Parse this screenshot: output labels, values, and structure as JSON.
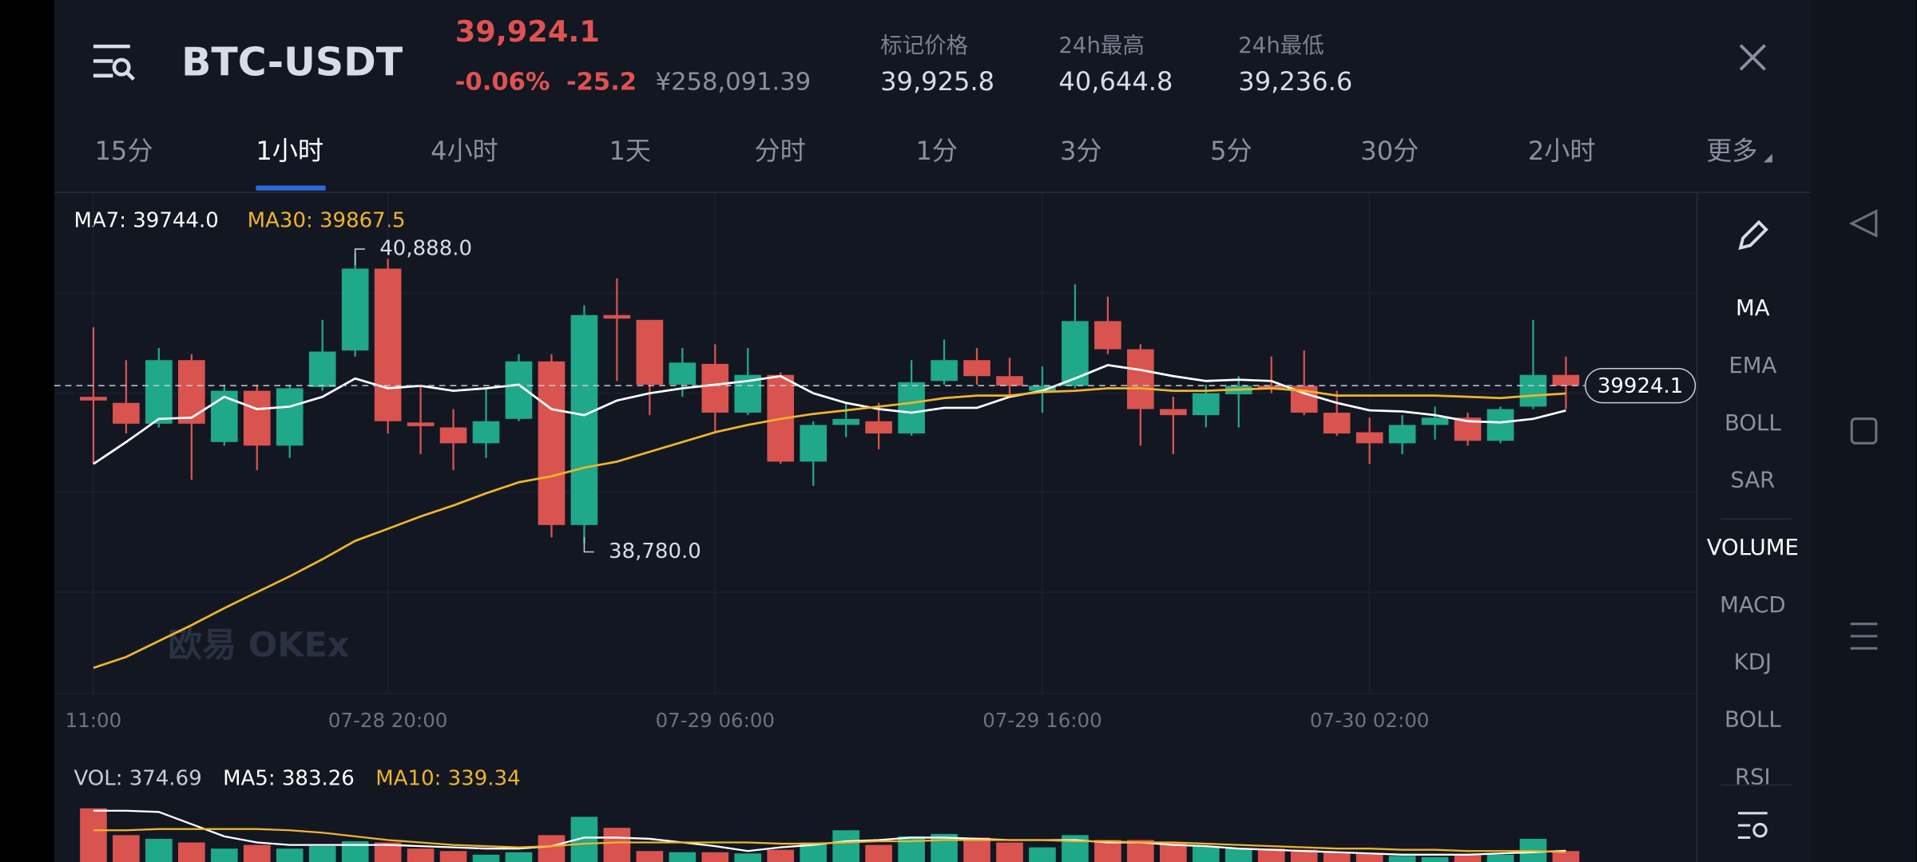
{
  "header": {
    "pair": "BTC-USDT",
    "price": "39,924.1",
    "change_pct": "-0.06%",
    "change": "-25.2",
    "cny": "¥258,091.39",
    "stats": [
      {
        "label": "标记价格",
        "value": "39,925.8"
      },
      {
        "label": "24h最高",
        "value": "40,644.8"
      },
      {
        "label": "24h最低",
        "value": "39,236.6"
      }
    ]
  },
  "tabs": [
    "15分",
    "1小时",
    "4小时",
    "1天",
    "分时",
    "1分",
    "3分",
    "5分",
    "30分",
    "2小时",
    "更多"
  ],
  "indicators": [
    "MA",
    "EMA",
    "BOLL",
    "SAR",
    "VOLUME",
    "MACD",
    "KDJ",
    "BOLL",
    "RSI"
  ],
  "watermark": "欧易 OKEx",
  "chart_data": {
    "type": "candlestick",
    "legend": [
      "MA7: 39744.0",
      "MA30: 39867.5"
    ],
    "categories": [
      "11:00",
      null,
      null,
      null,
      null,
      null,
      null,
      null,
      null,
      "07-28 20:00",
      null,
      null,
      null,
      null,
      null,
      null,
      null,
      null,
      null,
      "07-29 06:00",
      null,
      null,
      null,
      null,
      null,
      null,
      null,
      null,
      null,
      "07-29 16:00",
      null,
      null,
      null,
      null,
      null,
      null,
      null,
      null,
      null,
      "07-30 02:00",
      null,
      null,
      null,
      null,
      null,
      null
    ],
    "open": [
      39843,
      39799,
      39648,
      40109,
      39515,
      39887,
      39489,
      39914,
      40179,
      40773,
      39657,
      39621,
      39506,
      39683,
      40100,
      38913,
      40436,
      40401,
      39931,
      40082,
      39728,
      40002,
      39373,
      39639,
      39666,
      39577,
      39958,
      40109,
      39993,
      39887,
      39923,
      40392,
      40188,
      39754,
      39710,
      39861,
      39923,
      39923,
      39728,
      39586,
      39506,
      39639,
      39692,
      39524,
      39772,
      40002
    ],
    "high": [
      40348,
      40109,
      40197,
      40153,
      39931,
      39931,
      39931,
      40401,
      40888,
      40844,
      39931,
      39754,
      39905,
      40153,
      40153,
      40507,
      40702,
      40401,
      40197,
      40224,
      40197,
      40020,
      39666,
      39799,
      39799,
      40109,
      40259,
      40197,
      40126,
      40064,
      40658,
      40569,
      40224,
      39843,
      39931,
      39993,
      40135,
      40179,
      39887,
      39692,
      39710,
      39772,
      39728,
      39772,
      40401,
      40135
    ],
    "low": [
      39356,
      39577,
      39621,
      39241,
      39489,
      39311,
      39400,
      39887,
      40135,
      39577,
      39427,
      39311,
      39400,
      39666,
      38824,
      38780,
      39958,
      39710,
      39843,
      39577,
      39710,
      39356,
      39196,
      39551,
      39462,
      39560,
      39931,
      39931,
      39843,
      39728,
      39905,
      40153,
      39489,
      39427,
      39621,
      39621,
      39869,
      39710,
      39560,
      39356,
      39427,
      39533,
      39489,
      39506,
      39754,
      39754
    ],
    "close": [
      39816,
      39648,
      40109,
      39648,
      39887,
      39489,
      39905,
      40171,
      40773,
      39666,
      39630,
      39506,
      39666,
      40100,
      38913,
      40436,
      40410,
      39931,
      40091,
      39728,
      40002,
      39373,
      39639,
      39683,
      39577,
      39949,
      40109,
      39993,
      39923,
      39923,
      40392,
      40188,
      39754,
      39710,
      39869,
      39923,
      39905,
      39728,
      39577,
      39506,
      39639,
      39692,
      39524,
      39754,
      40002,
      39924.1
    ],
    "up_color": "#1fa889",
    "down_color": "#d9534f",
    "lines": [
      {
        "color": "#ffffff",
        "values": [
          39356,
          39515,
          39683,
          39692,
          39843,
          39754,
          39772,
          39843,
          39976,
          39905,
          39923,
          39887,
          39905,
          39931,
          39754,
          39710,
          39816,
          39869,
          39905,
          39931,
          39958,
          39993,
          39869,
          39799,
          39754,
          39728,
          39763,
          39763,
          39843,
          39887,
          39976,
          40073,
          40038,
          39993,
          39958,
          39967,
          39958,
          39869,
          39799,
          39745,
          39737,
          39710,
          39666,
          39657,
          39683,
          39744
        ]
      },
      {
        "color": "#f0b428",
        "values": [
          37877,
          37956,
          38072,
          38187,
          38310,
          38426,
          38541,
          38665,
          38798,
          38886,
          38975,
          39055,
          39143,
          39223,
          39267,
          39329,
          39373,
          39444,
          39515,
          39586,
          39639,
          39683,
          39719,
          39745,
          39772,
          39799,
          39834,
          39852,
          39852,
          39878,
          39887,
          39905,
          39905,
          39887,
          39887,
          39896,
          39905,
          39887,
          39852,
          39852,
          39852,
          39852,
          39843,
          39834,
          39852,
          39867.5
        ]
      }
    ],
    "ylim": [
      37691,
      41322
    ],
    "annotations": [
      {
        "value": 40888,
        "label": "40,888.0"
      },
      {
        "value": 38780,
        "label": "38,780.0"
      }
    ],
    "last_price": 39924.1,
    "volume": {
      "legend": [
        "VOL: 374.69",
        "MA5: 383.26",
        "MA10: 339.34"
      ],
      "values": [
        1833,
        917,
        792,
        667,
        458,
        583,
        458,
        542,
        708,
        667,
        458,
        375,
        250,
        333,
        917,
        1542,
        1167,
        375,
        333,
        333,
        292,
        417,
        667,
        1083,
        583,
        875,
        958,
        833,
        667,
        500,
        917,
        750,
        750,
        667,
        542,
        458,
        458,
        417,
        333,
        292,
        208,
        167,
        250,
        250,
        792,
        374.69
      ],
      "ylim": [
        0,
        2000
      ],
      "lines": [
        {
          "color": "#ffffff",
          "values": [
            1750,
            1750,
            1708,
            1292,
            875,
            667,
            583,
            583,
            583,
            583,
            542,
            500,
            458,
            458,
            542,
            833,
            833,
            792,
            667,
            542,
            375,
            500,
            583,
            708,
            750,
            833,
            833,
            792,
            750,
            750,
            750,
            667,
            667,
            583,
            542,
            458,
            417,
            375,
            333,
            292,
            250,
            250,
            250,
            292,
            333,
            383.26
          ]
        },
        {
          "color": "#f0b428",
          "values": [
            1083,
            1083,
            1125,
            1125,
            1125,
            1125,
            1083,
            1000,
            875,
            750,
            667,
            583,
            542,
            500,
            542,
            625,
            667,
            667,
            667,
            667,
            667,
            625,
            625,
            667,
            708,
            708,
            750,
            750,
            750,
            750,
            708,
            708,
            667,
            667,
            625,
            583,
            542,
            500,
            458,
            458,
            417,
            417,
            375,
            375,
            375,
            339.34
          ]
        }
      ]
    }
  }
}
